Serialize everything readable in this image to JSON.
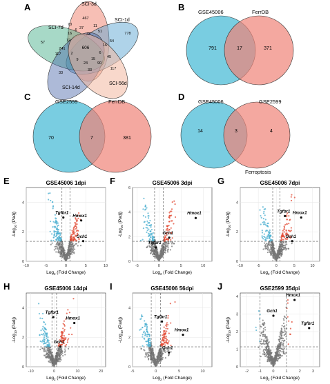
{
  "panels": {
    "A": {
      "letter": "A",
      "labels": [
        "SCI-3d",
        "SCI-1d",
        "SCI-7d",
        "SCI-14d",
        "SCI-56d"
      ],
      "counts": [
        "467",
        "778",
        "57",
        "33",
        "117",
        "606",
        "37",
        "51",
        "11",
        "6",
        "70",
        "43",
        "16",
        "16",
        "6",
        "12",
        "54",
        "9",
        "2",
        "15",
        "24",
        "241",
        "117",
        "45",
        "90",
        "33"
      ]
    },
    "B": {
      "letter": "B",
      "left": "GSE45006",
      "right": "FerrDB",
      "left_only": "791",
      "both": "17",
      "right_only": "371"
    },
    "C": {
      "letter": "C",
      "left": "GSE2599",
      "right": "FerrDB",
      "left_only": "70",
      "both": "7",
      "right_only": "381"
    },
    "D": {
      "letter": "D",
      "left": "GSE45006",
      "right": "GSE2599",
      "bottom": "Ferroptosis",
      "left_only": "14",
      "both": "3",
      "right_only": "4"
    }
  },
  "chart_data": [
    {
      "type": "scatter",
      "panel": "E",
      "title": "GSE45006 1dpi",
      "xlim": [
        -10,
        10
      ],
      "ylim": [
        0,
        5
      ],
      "xticks": [
        "-10",
        "-5",
        "0",
        "5",
        "10"
      ],
      "yticks": [
        "0",
        "2",
        "4"
      ],
      "labels": [
        "Tgfbr1",
        "Hmox1",
        "Gch1"
      ],
      "colors": {
        "down": "#4bafd0",
        "up": "#e24a33",
        "ns": "#777777"
      }
    },
    {
      "type": "scatter",
      "panel": "F",
      "title": "GSE45006 3dpi",
      "xlim": [
        -6,
        12
      ],
      "ylim": [
        0,
        6
      ],
      "xticks": [
        "-5",
        "0",
        "5",
        "10"
      ],
      "yticks": [
        "0",
        "2",
        "4",
        "6"
      ],
      "labels": [
        "Hmox1",
        "Gch1",
        "Tgfbr1"
      ],
      "colors": {
        "down": "#4bafd0",
        "up": "#e24a33",
        "ns": "#777777"
      }
    },
    {
      "type": "scatter",
      "panel": "G",
      "title": "GSE45006 7dpi",
      "xlim": [
        -10,
        12
      ],
      "ylim": [
        0,
        5
      ],
      "xticks": [
        "-10",
        "-5",
        "0",
        "5",
        "10"
      ],
      "yticks": [
        "0",
        "2",
        "4"
      ],
      "labels": [
        "Tgfbr1",
        "Hmox1",
        "Gch1"
      ],
      "colors": {
        "down": "#4bafd0",
        "up": "#e24a33",
        "ns": "#777777"
      }
    },
    {
      "type": "scatter",
      "panel": "H",
      "title": "GSE45006 14dpi",
      "xlim": [
        -12,
        22
      ],
      "ylim": [
        0,
        5
      ],
      "xticks": [
        "-10",
        "0",
        "10",
        "20"
      ],
      "yticks": [
        "0",
        "2",
        "4"
      ],
      "labels": [
        "Tgfbr1",
        "Hmox1",
        "Gch1"
      ],
      "colors": {
        "down": "#4bafd0",
        "up": "#e24a33",
        "ns": "#777777"
      }
    },
    {
      "type": "scatter",
      "panel": "I",
      "title": "GSE45006 56dpi",
      "xlim": [
        -5,
        12
      ],
      "ylim": [
        0,
        5
      ],
      "xticks": [
        "-5",
        "0",
        "5",
        "10"
      ],
      "yticks": [
        "0",
        "2",
        "4"
      ],
      "labels": [
        "Tgfbr1",
        "Hmox1",
        "Gch1"
      ],
      "colors": {
        "down": "#4bafd0",
        "up": "#e24a33",
        "ns": "#777777"
      }
    },
    {
      "type": "scatter",
      "panel": "J",
      "title": "GSE2599 35dpi",
      "xlim": [
        -2.5,
        3.5
      ],
      "ylim": [
        0,
        4.2
      ],
      "xticks": [
        "-2",
        "-1",
        "0",
        "1",
        "2",
        "3"
      ],
      "yticks": [
        "0",
        "1",
        "2",
        "3",
        "4"
      ],
      "labels": [
        "Hmox1",
        "Gch1",
        "Tgfbr1"
      ],
      "colors": {
        "down": "#4bafd0",
        "up": "#e24a33",
        "ns": "#777777"
      }
    }
  ],
  "axis": {
    "xlabel_main": "Log",
    "xlabel_sub": "2",
    "xlabel_tail": " (Fold Change)",
    "ylabel_main": "-Log",
    "ylabel_sub": "10",
    "ylabel_tail": " (Padj)"
  }
}
